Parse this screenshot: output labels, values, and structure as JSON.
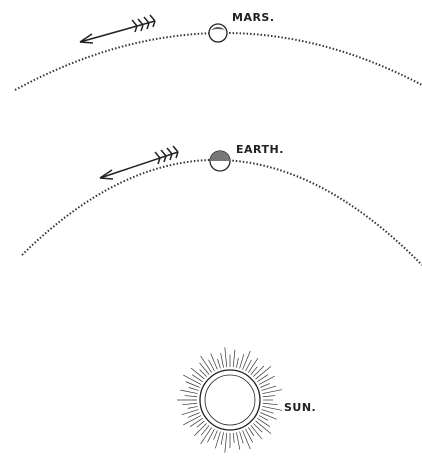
{
  "nodes": [
    {
      "label": "MARS."
    },
    {
      "label": "EARTH."
    },
    {
      "label": "SUN."
    }
  ]
}
